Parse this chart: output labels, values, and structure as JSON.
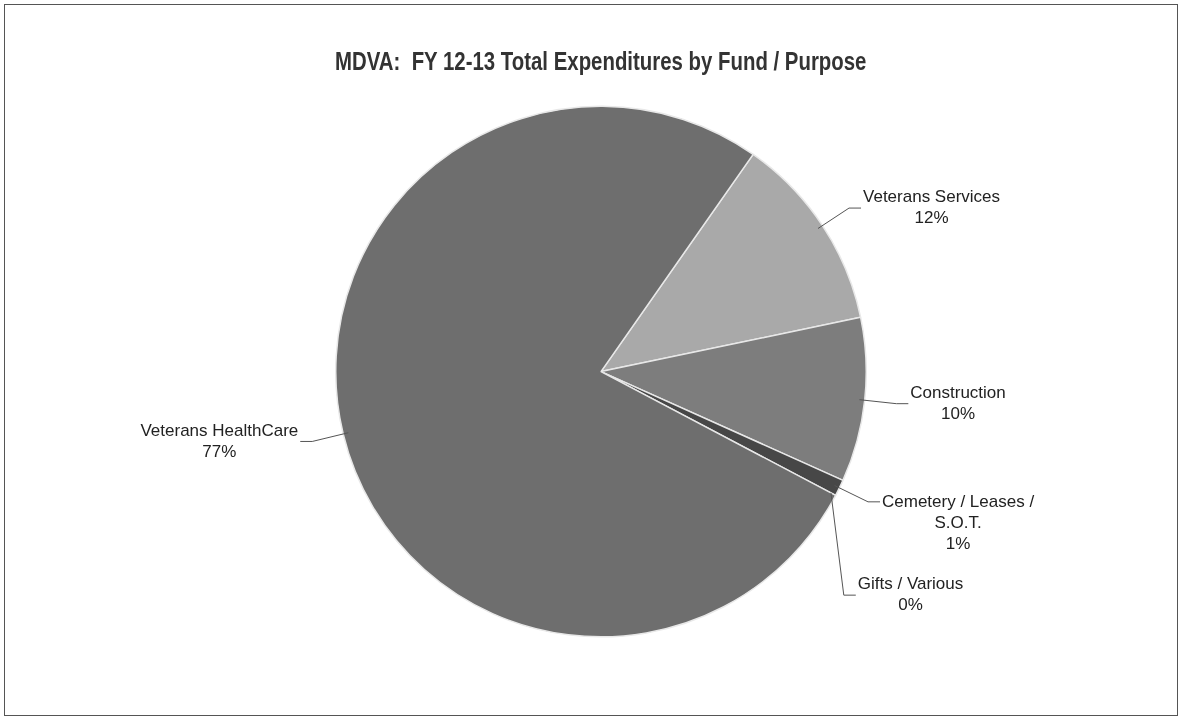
{
  "chart_data": {
    "type": "pie",
    "title": "MDVA:  FY 12-13 Total Expenditures by Fund / Purpose",
    "categories": [
      "Veterans Services",
      "Construction",
      "Cemetery / Leases / S.O.T.",
      "Gifts / Various",
      "Veterans HealthCare"
    ],
    "values": [
      12,
      10,
      1,
      0,
      77
    ],
    "value_labels": [
      "12%",
      "10%",
      "1%",
      "0%",
      "77%"
    ],
    "colors": [
      "#a9a9a9",
      "#7d7d7d",
      "#474747",
      "#9a9a9a",
      "#6e6e6e"
    ],
    "legend": false
  }
}
